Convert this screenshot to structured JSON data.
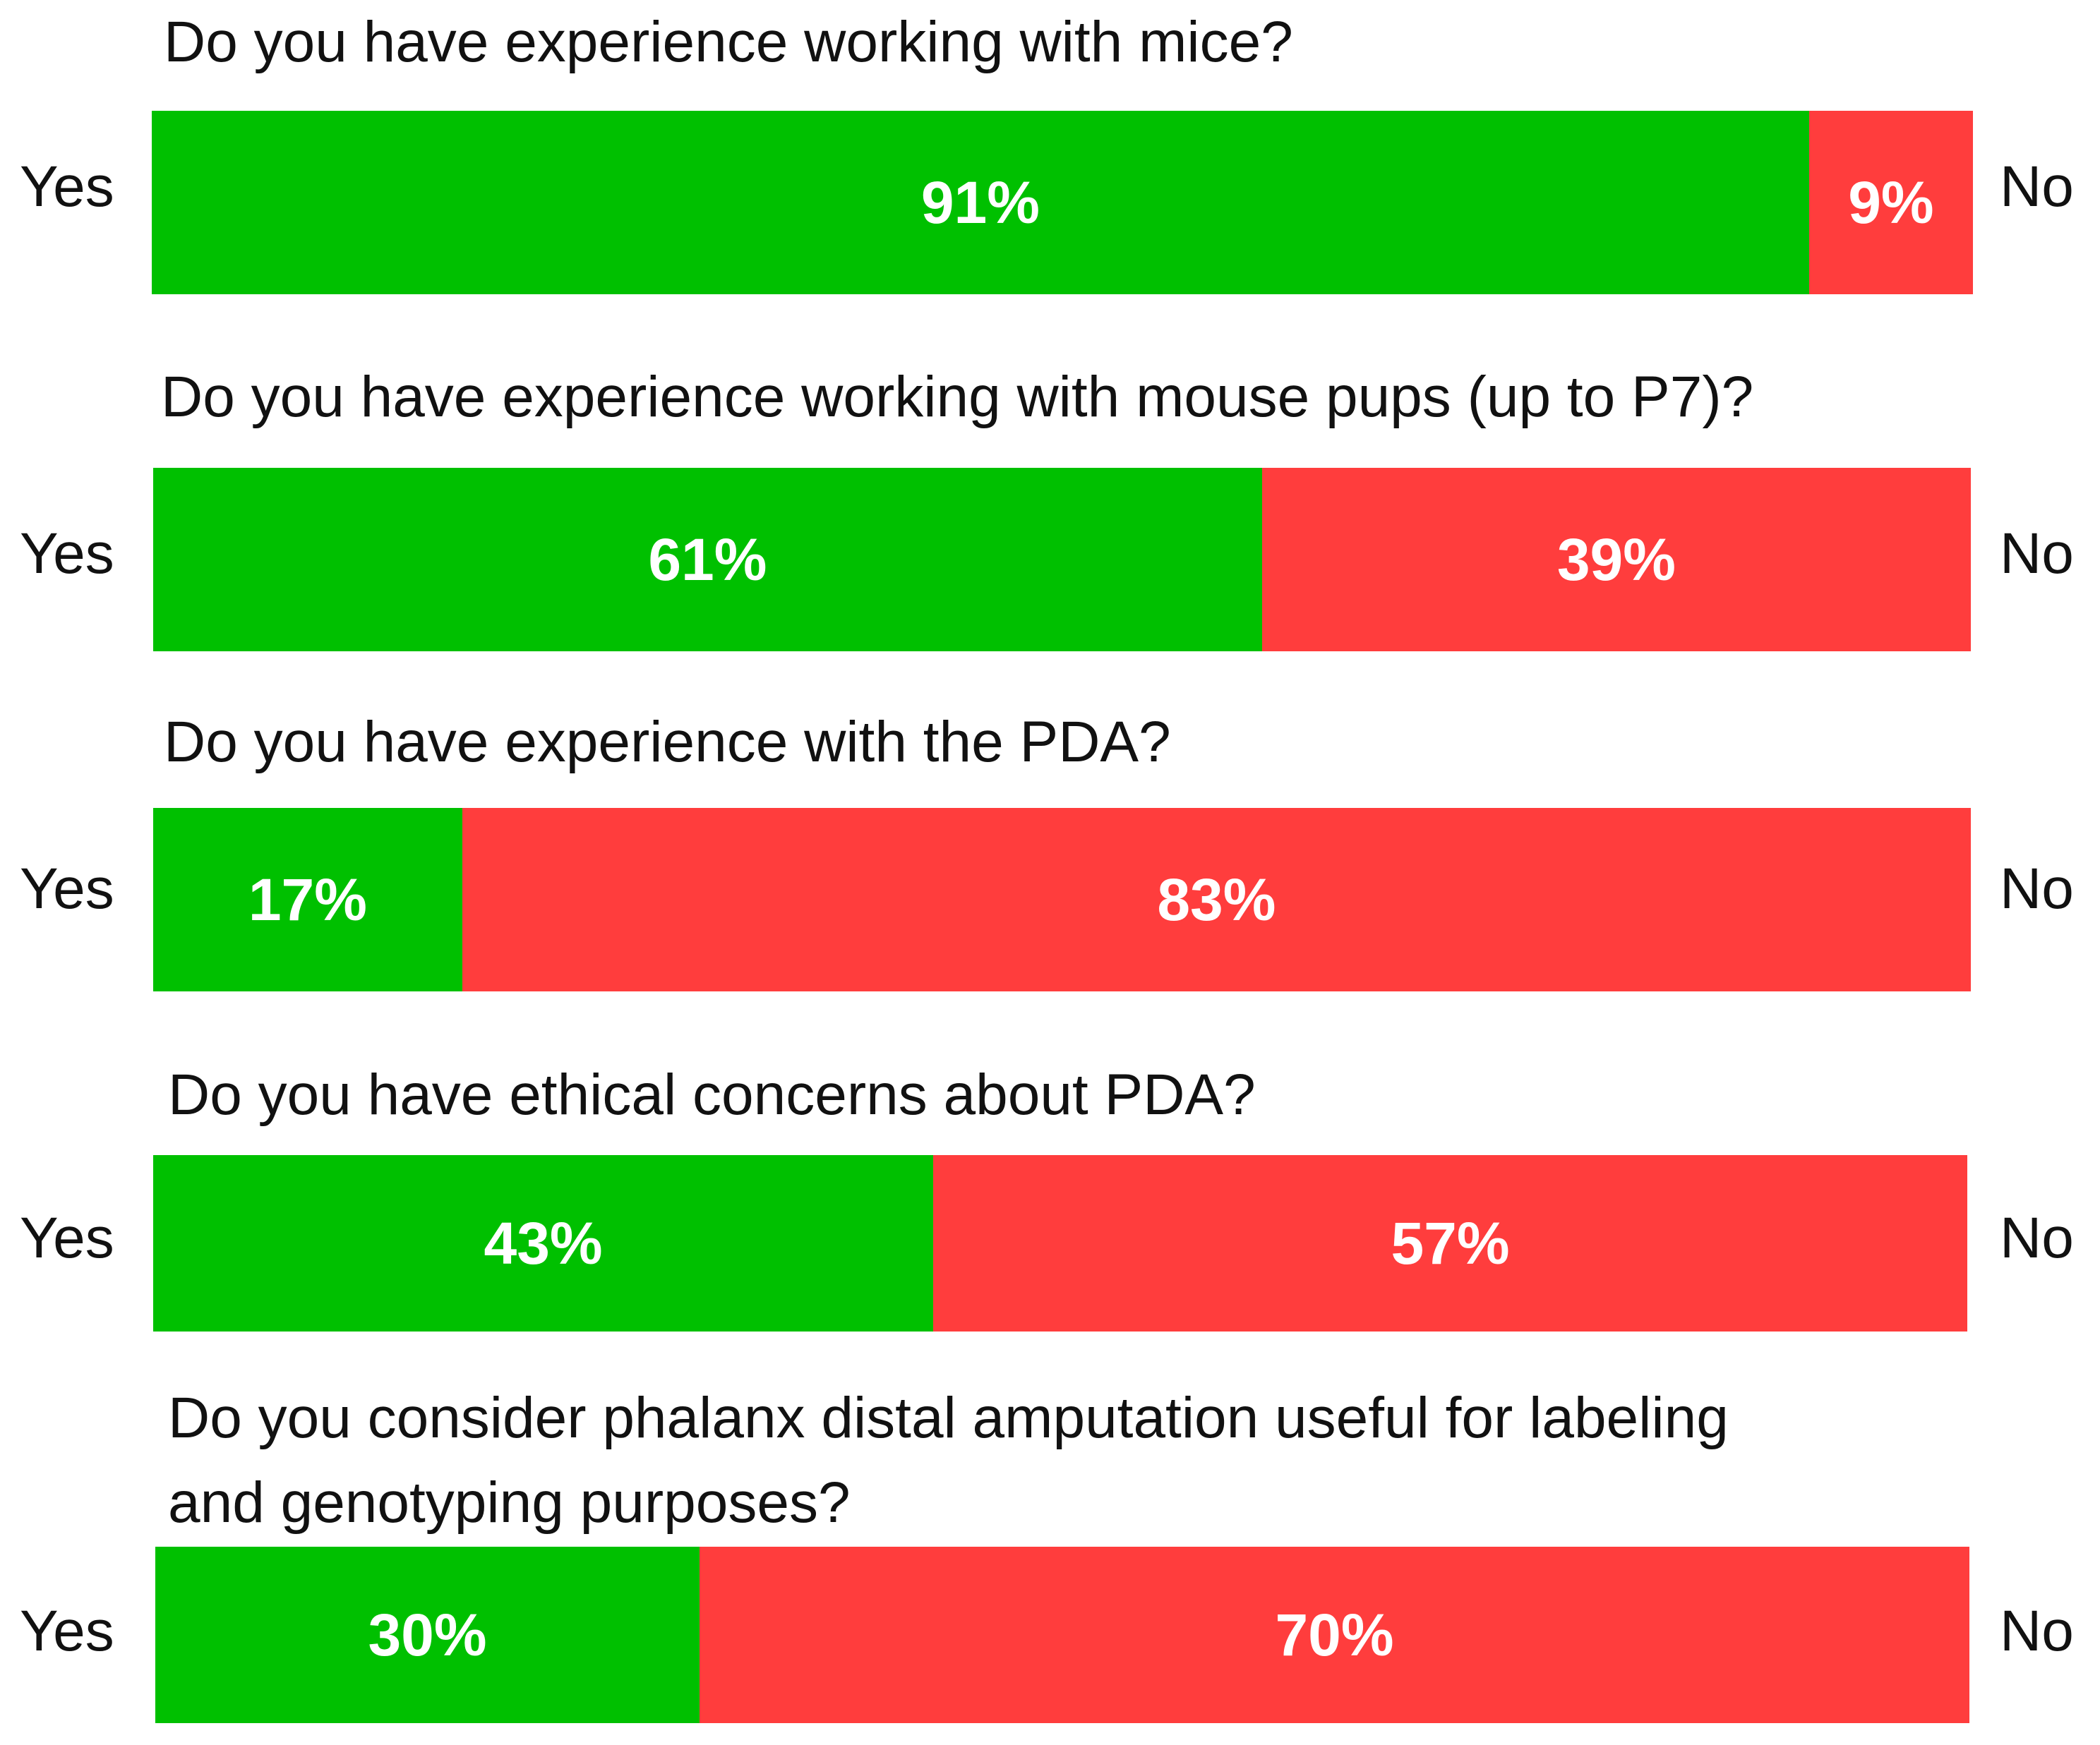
{
  "colors": {
    "yes": "#00C000",
    "no": "#FF3D3D",
    "text": "#111111",
    "bar_text": "#FFFFFF"
  },
  "chart_data": {
    "type": "bar",
    "orientation": "horizontal",
    "stacked": true,
    "normalized_to": 100,
    "unit": "%",
    "left_label": "Yes",
    "right_label": "No",
    "series_names": [
      "Yes",
      "No"
    ],
    "categories": [
      "Do you have experience working with mice?",
      "Do you have experience working with mouse pups (up to P7)?",
      "Do you have experience with the PDA?",
      "Do you have ethical concerns about PDA?",
      "Do you consider phalanx distal amputation useful for labeling\nand genotyping purposes?"
    ],
    "series": [
      {
        "name": "Yes",
        "values": [
          91,
          61,
          17,
          43,
          30
        ]
      },
      {
        "name": "No",
        "values": [
          9,
          39,
          83,
          57,
          70
        ]
      }
    ],
    "items": [
      {
        "question": "Do you have experience working with mice?",
        "yes": 91,
        "no": 9,
        "yes_label": "91%",
        "no_label": "9%"
      },
      {
        "question": "Do you have experience working with mouse pups (up to P7)?",
        "yes": 61,
        "no": 39,
        "yes_label": "61%",
        "no_label": "39%"
      },
      {
        "question": "Do you have experience with the PDA?",
        "yes": 17,
        "no": 83,
        "yes_label": "17%",
        "no_label": "83%"
      },
      {
        "question": "Do you have ethical concerns about PDA?",
        "yes": 43,
        "no": 57,
        "yes_label": "43%",
        "no_label": "57%"
      },
      {
        "question": "Do you consider phalanx distal amputation useful for labeling\nand genotyping purposes?",
        "yes": 30,
        "no": 70,
        "yes_label": "30%",
        "no_label": "70%"
      }
    ]
  }
}
